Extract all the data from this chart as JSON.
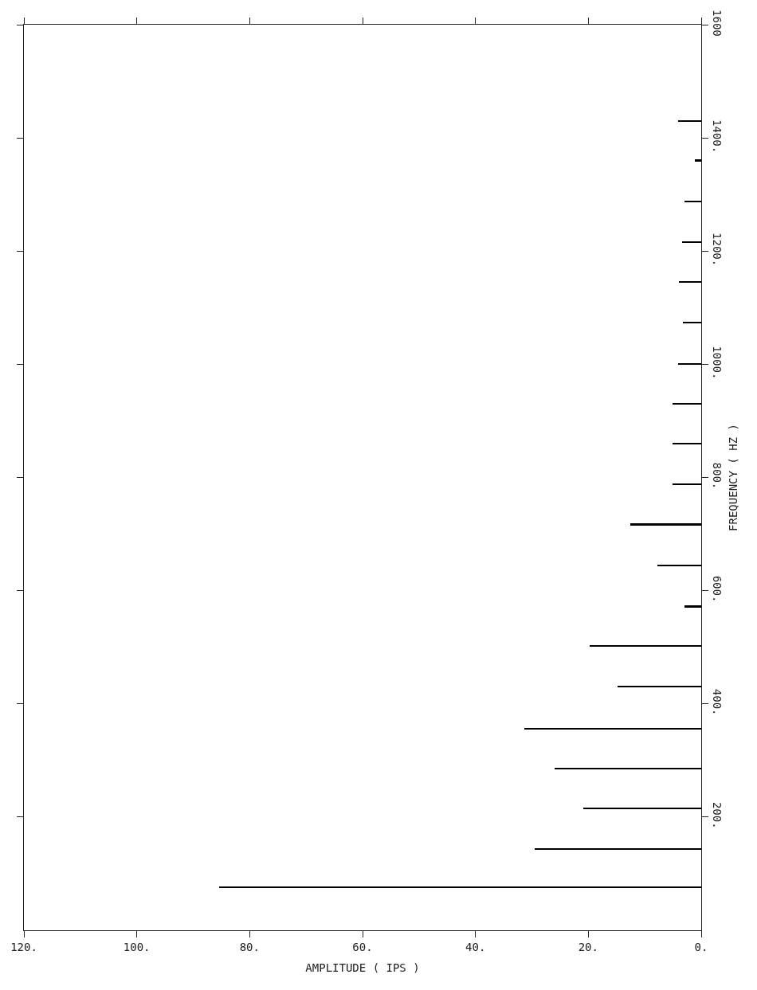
{
  "chart_data": {
    "type": "bar",
    "orientation": "horizontal",
    "xlabel": "AMPLITUDE ( IPS )",
    "ylabel": "FREQUENCY ( HZ )",
    "x": [
      76,
      144,
      215,
      286,
      356,
      431,
      502,
      572,
      644,
      717,
      788,
      860,
      930,
      1001,
      1074,
      1146,
      1216,
      1287,
      1360,
      1430
    ],
    "values": [
      85.4,
      29.5,
      20.9,
      26,
      31.3,
      14.8,
      19.8,
      3,
      7.8,
      12.5,
      5.1,
      5.1,
      5.1,
      4.1,
      3.3,
      4,
      3.4,
      2.9,
      1.1,
      4.1
    ],
    "color": "#000000",
    "xlim": [
      120,
      0
    ],
    "xticks": [
      {
        "value": 120,
        "label": "120."
      },
      {
        "value": 100,
        "label": "100."
      },
      {
        "value": 80,
        "label": "80."
      },
      {
        "value": 60,
        "label": "60."
      },
      {
        "value": 40,
        "label": "40."
      },
      {
        "value": 20,
        "label": "20."
      },
      {
        "value": 0,
        "label": "0."
      }
    ],
    "ylim": [
      0,
      1600
    ],
    "yticks": [
      {
        "value": 200,
        "label": "200."
      },
      {
        "value": 400,
        "label": "400."
      },
      {
        "value": 600,
        "label": "600."
      },
      {
        "value": 800,
        "label": "800."
      },
      {
        "value": 1000,
        "label": "1000."
      },
      {
        "value": 1200,
        "label": "1200."
      },
      {
        "value": 1400,
        "label": "1400."
      },
      {
        "value": 1600,
        "label": "1600"
      }
    ],
    "grid": false
  }
}
